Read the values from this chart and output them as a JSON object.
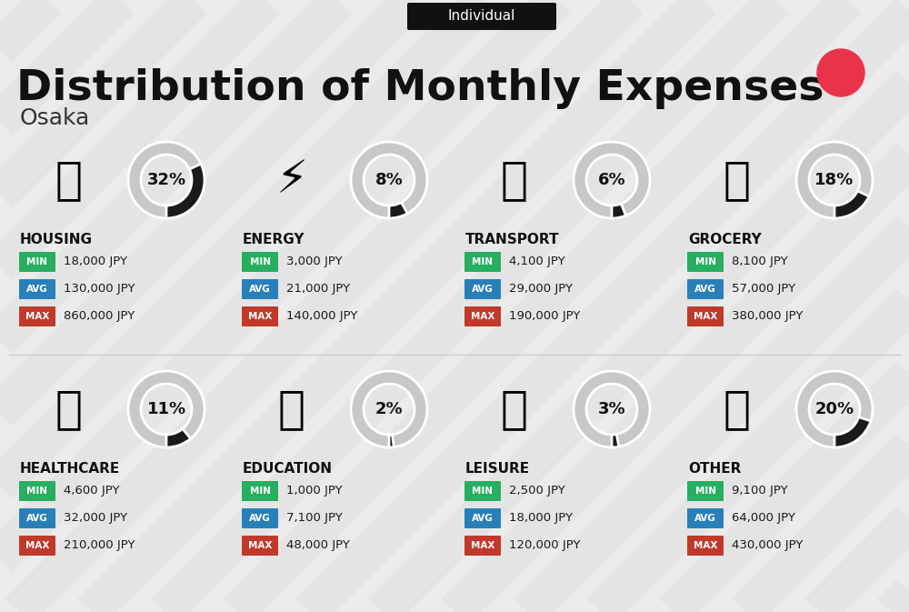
{
  "title": "Distribution of Monthly Expenses",
  "subtitle": "Osaka",
  "tag": "Individual",
  "bg_color": "#ebebeb",
  "red_dot_color": "#e8334a",
  "categories": [
    {
      "name": "HOUSING",
      "pct": 32,
      "min_val": "18,000 JPY",
      "avg_val": "130,000 JPY",
      "max_val": "860,000 JPY",
      "row": 0,
      "col": 0
    },
    {
      "name": "ENERGY",
      "pct": 8,
      "min_val": "3,000 JPY",
      "avg_val": "21,000 JPY",
      "max_val": "140,000 JPY",
      "row": 0,
      "col": 1
    },
    {
      "name": "TRANSPORT",
      "pct": 6,
      "min_val": "4,100 JPY",
      "avg_val": "29,000 JPY",
      "max_val": "190,000 JPY",
      "row": 0,
      "col": 2
    },
    {
      "name": "GROCERY",
      "pct": 18,
      "min_val": "8,100 JPY",
      "avg_val": "57,000 JPY",
      "max_val": "380,000 JPY",
      "row": 0,
      "col": 3
    },
    {
      "name": "HEALTHCARE",
      "pct": 11,
      "min_val": "4,600 JPY",
      "avg_val": "32,000 JPY",
      "max_val": "210,000 JPY",
      "row": 1,
      "col": 0
    },
    {
      "name": "EDUCATION",
      "pct": 2,
      "min_val": "1,000 JPY",
      "avg_val": "7,100 JPY",
      "max_val": "48,000 JPY",
      "row": 1,
      "col": 1
    },
    {
      "name": "LEISURE",
      "pct": 3,
      "min_val": "2,500 JPY",
      "avg_val": "18,000 JPY",
      "max_val": "120,000 JPY",
      "row": 1,
      "col": 2
    },
    {
      "name": "OTHER",
      "pct": 20,
      "min_val": "9,100 JPY",
      "avg_val": "64,000 JPY",
      "max_val": "430,000 JPY",
      "row": 1,
      "col": 3
    }
  ],
  "min_color": "#27ae60",
  "avg_color": "#2980b9",
  "max_color": "#c0392b",
  "value_text_color": "#1a1a1a",
  "category_text_color": "#111111",
  "pct_text_color": "#111111",
  "ring_filled_color": "#1a1a1a",
  "ring_empty_color": "#c8c8c8",
  "stripe_color": "#e2e2e2",
  "tag_bg": "#111111",
  "tag_fg": "#ffffff",
  "title_color": "#111111",
  "subtitle_color": "#333333"
}
